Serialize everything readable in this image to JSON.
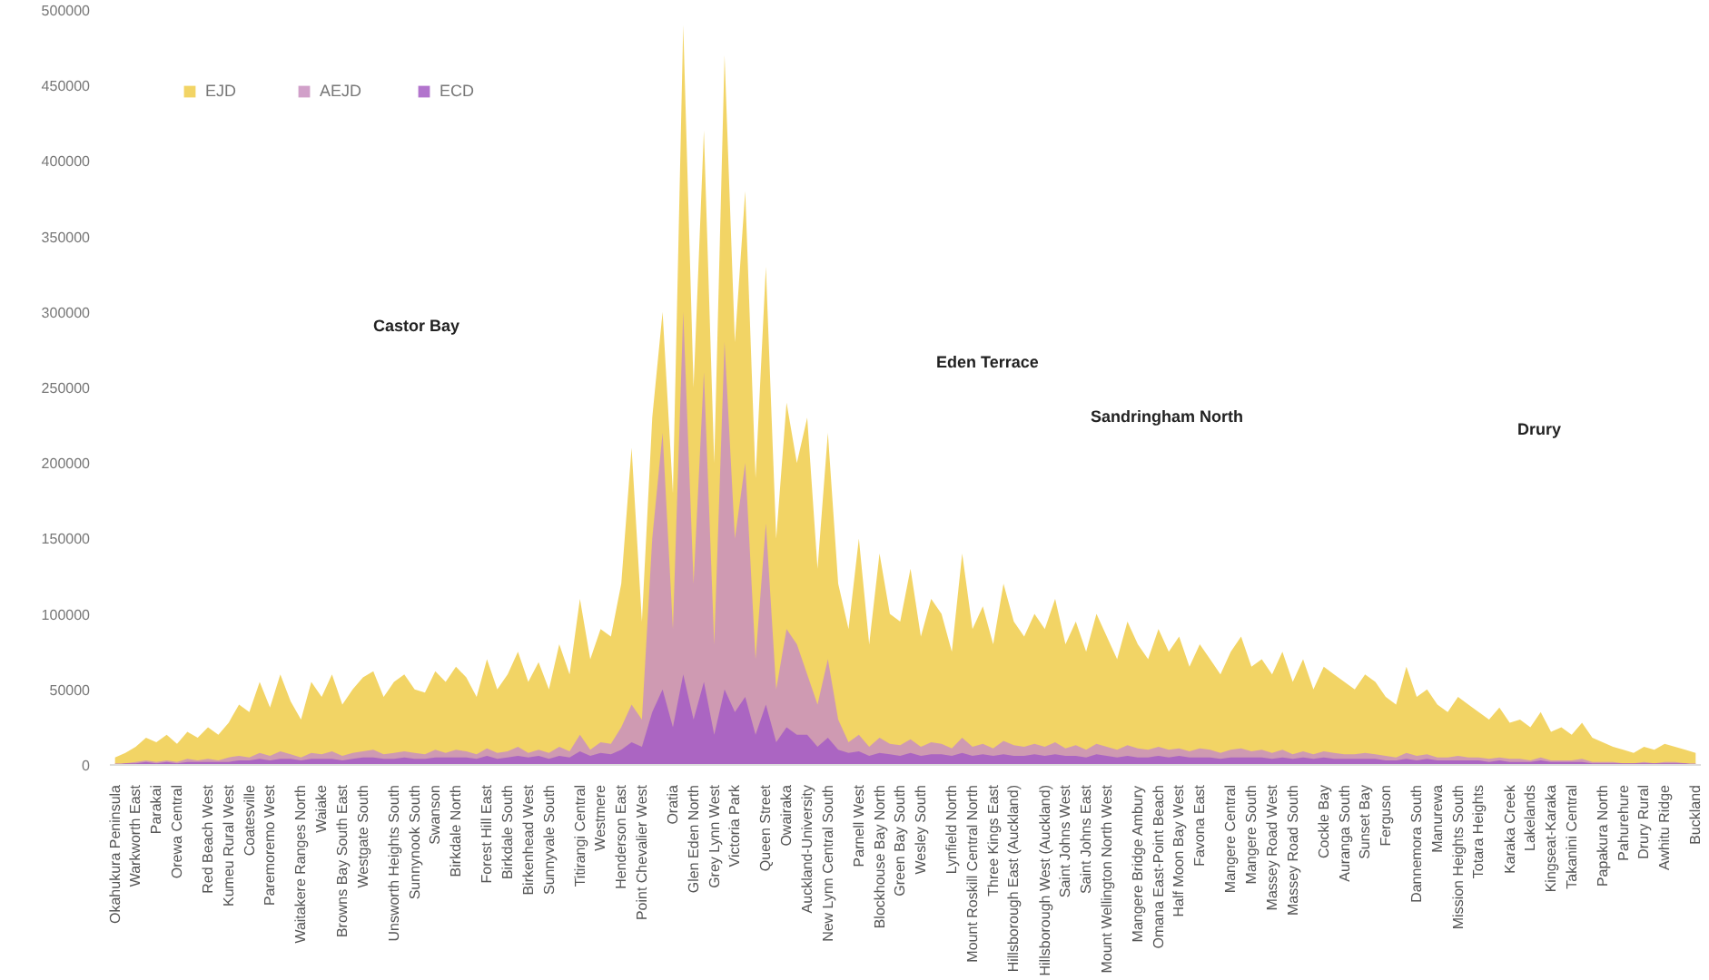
{
  "chart_data": {
    "type": "area",
    "categories": [
      "Okahukura Peninsula",
      null,
      "Warkworth East",
      null,
      "Parakai",
      null,
      "Orewa Central",
      null,
      null,
      "Red Beach West",
      null,
      "Kumeu Rural West",
      null,
      "Coatesville",
      null,
      "Paremoremo West",
      null,
      null,
      "Waitakere Ranges North",
      null,
      "Waiake",
      null,
      "Browns Bay South East",
      null,
      "Westgate South",
      null,
      null,
      "Unsworth Heights South",
      null,
      "Sunnynook South",
      null,
      "Swanson",
      null,
      "Birkdale North",
      null,
      null,
      "Forest Hill East",
      null,
      "Birkdale South",
      null,
      "Birkenhead West",
      null,
      "Sunnyvale South",
      null,
      null,
      "Titirangi Central",
      null,
      "Westmere",
      null,
      "Henderson East",
      null,
      "Point Chevalier West",
      null,
      null,
      "Oratia",
      null,
      "Glen Eden North",
      null,
      "Grey Lynn West",
      null,
      "Victoria Park",
      null,
      null,
      "Queen Street",
      null,
      "Owairaka",
      null,
      "Auckland-University",
      null,
      "New Lynn Central South",
      null,
      null,
      "Parnell West",
      null,
      "Blockhouse Bay North",
      null,
      "Green Bay South",
      null,
      "Wesley South",
      null,
      null,
      "Lynfield North",
      null,
      "Mount Roskill Central North",
      null,
      "Three Kings East",
      null,
      "Hillsborough East (Auckland)",
      null,
      null,
      "Hillsborough West (Auckland)",
      null,
      "Saint Johns West",
      null,
      "Saint Johns East",
      null,
      "Mount Wellington North West",
      null,
      null,
      "Mangere Bridge Ambury",
      null,
      "Omana East-Point Beach",
      null,
      "Half Moon Bay West",
      null,
      "Favona East",
      null,
      null,
      "Mangere Central",
      null,
      "Mangere South",
      null,
      "Massey Road West",
      null,
      "Massey Road South",
      null,
      null,
      "Cockle Bay",
      null,
      "Auranga South",
      null,
      "Sunset Bay",
      null,
      "Ferguson",
      null,
      null,
      "Dannemora South",
      null,
      "Manurewa",
      null,
      "Mission Heights South",
      null,
      "Totara Heights",
      null,
      null,
      "Karaka Creek",
      null,
      "Lakelands",
      null,
      "Kingseat-Karaka",
      null,
      "Takanini Central",
      null,
      null,
      "Papakura North",
      null,
      "Pahurehure",
      null,
      "Drury Rural",
      null,
      "Awhitu Ridge",
      null,
      null,
      "Buckland"
    ],
    "series": [
      {
        "name": "EJD",
        "color": "#f0cd4a",
        "values": [
          5000,
          8000,
          12000,
          18000,
          15000,
          20000,
          14000,
          22000,
          18000,
          25000,
          20000,
          28000,
          40000,
          35000,
          55000,
          38000,
          60000,
          42000,
          30000,
          55000,
          45000,
          60000,
          40000,
          50000,
          58000,
          62000,
          45000,
          55000,
          60000,
          50000,
          48000,
          62000,
          55000,
          65000,
          58000,
          45000,
          70000,
          50000,
          60000,
          75000,
          55000,
          68000,
          50000,
          80000,
          60000,
          110000,
          70000,
          90000,
          85000,
          120000,
          210000,
          95000,
          230000,
          300000,
          180000,
          490000,
          250000,
          420000,
          200000,
          470000,
          280000,
          380000,
          190000,
          330000,
          150000,
          240000,
          200000,
          230000,
          130000,
          220000,
          120000,
          90000,
          150000,
          80000,
          140000,
          100000,
          95000,
          130000,
          85000,
          110000,
          100000,
          75000,
          140000,
          90000,
          105000,
          80000,
          120000,
          95000,
          85000,
          100000,
          90000,
          110000,
          80000,
          95000,
          75000,
          100000,
          85000,
          70000,
          95000,
          80000,
          70000,
          90000,
          75000,
          85000,
          65000,
          80000,
          70000,
          60000,
          75000,
          85000,
          65000,
          70000,
          60000,
          75000,
          55000,
          70000,
          50000,
          65000,
          60000,
          55000,
          50000,
          60000,
          55000,
          45000,
          40000,
          65000,
          45000,
          50000,
          40000,
          35000,
          45000,
          40000,
          35000,
          30000,
          38000,
          28000,
          30000,
          25000,
          35000,
          22000,
          25000,
          20000,
          28000,
          18000,
          15000,
          12000,
          10000,
          8000,
          12000,
          10000,
          14000,
          12000,
          10000,
          8000
        ]
      },
      {
        "name": "AEJD",
        "color": "#c98fbf",
        "values": [
          1000,
          1000,
          2000,
          3000,
          2000,
          3000,
          2000,
          4000,
          3000,
          4000,
          3000,
          5000,
          6000,
          5000,
          8000,
          6000,
          9000,
          7000,
          5000,
          8000,
          7000,
          9000,
          6000,
          8000,
          9000,
          10000,
          7000,
          8000,
          9000,
          8000,
          7000,
          10000,
          8000,
          10000,
          9000,
          7000,
          11000,
          8000,
          9000,
          12000,
          8000,
          10000,
          8000,
          12000,
          9000,
          20000,
          10000,
          15000,
          14000,
          25000,
          40000,
          30000,
          150000,
          220000,
          90000,
          300000,
          120000,
          260000,
          80000,
          280000,
          150000,
          200000,
          70000,
          160000,
          50000,
          90000,
          80000,
          60000,
          40000,
          70000,
          30000,
          15000,
          20000,
          12000,
          18000,
          14000,
          13000,
          17000,
          12000,
          15000,
          14000,
          11000,
          18000,
          12000,
          14000,
          11000,
          16000,
          13000,
          12000,
          14000,
          12000,
          15000,
          11000,
          13000,
          10000,
          14000,
          12000,
          10000,
          13000,
          11000,
          10000,
          12000,
          10000,
          11000,
          9000,
          11000,
          10000,
          8000,
          10000,
          11000,
          9000,
          10000,
          8000,
          10000,
          7000,
          9000,
          7000,
          9000,
          8000,
          7000,
          7000,
          8000,
          7000,
          6000,
          5000,
          8000,
          6000,
          7000,
          5000,
          5000,
          6000,
          5000,
          5000,
          4000,
          5000,
          4000,
          4000,
          3000,
          5000,
          3000,
          3000,
          3000,
          4000,
          2000,
          2000,
          2000,
          1000,
          1000,
          2000,
          1000,
          2000,
          2000,
          1000,
          1000
        ]
      },
      {
        "name": "ECD",
        "color": "#a45cc4",
        "values": [
          0,
          1000,
          1000,
          2000,
          1000,
          2000,
          1000,
          2000,
          2000,
          2000,
          2000,
          2000,
          3000,
          3000,
          4000,
          3000,
          4000,
          4000,
          3000,
          4000,
          4000,
          4000,
          3000,
          4000,
          5000,
          5000,
          4000,
          4000,
          5000,
          4000,
          4000,
          5000,
          5000,
          5000,
          5000,
          4000,
          6000,
          4000,
          5000,
          6000,
          5000,
          6000,
          4000,
          6000,
          5000,
          9000,
          6000,
          8000,
          7000,
          10000,
          15000,
          12000,
          35000,
          50000,
          25000,
          60000,
          30000,
          55000,
          20000,
          50000,
          35000,
          45000,
          20000,
          40000,
          15000,
          25000,
          20000,
          20000,
          12000,
          18000,
          10000,
          8000,
          9000,
          6000,
          8000,
          7000,
          6000,
          8000,
          6000,
          7000,
          7000,
          6000,
          8000,
          6000,
          7000,
          6000,
          7000,
          6000,
          6000,
          7000,
          6000,
          7000,
          6000,
          6000,
          5000,
          7000,
          6000,
          5000,
          6000,
          5000,
          5000,
          6000,
          5000,
          6000,
          5000,
          5000,
          5000,
          4000,
          5000,
          5000,
          5000,
          5000,
          4000,
          5000,
          4000,
          5000,
          4000,
          5000,
          4000,
          4000,
          4000,
          4000,
          4000,
          3000,
          3000,
          4000,
          3000,
          4000,
          3000,
          3000,
          3000,
          3000,
          3000,
          2000,
          3000,
          2000,
          2000,
          2000,
          3000,
          2000,
          2000,
          2000,
          2000,
          1000,
          1000,
          1000,
          1000,
          1000,
          1000,
          1000,
          1000,
          1000,
          1000,
          0
        ]
      }
    ],
    "ylim": [
      0,
      500000
    ],
    "yticks": [
      0,
      50000,
      100000,
      150000,
      200000,
      250000,
      300000,
      350000,
      400000,
      450000,
      500000
    ],
    "grid": false,
    "legend": "top left",
    "annotations": [
      "Castor Bay",
      "Eden Terrace",
      "Sandringham North",
      "Drury"
    ]
  }
}
